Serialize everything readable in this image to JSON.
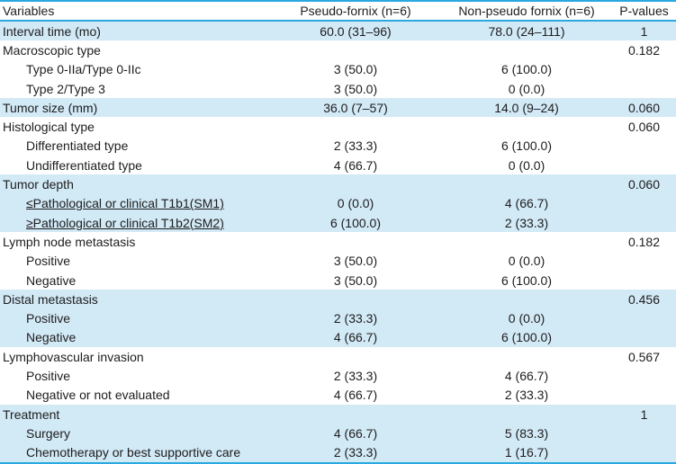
{
  "colors": {
    "accent_blue": "#2aa9e0",
    "shaded_row_blue": "#d2e9f6",
    "text": "#1d1d1d",
    "background": "#ffffff"
  },
  "table": {
    "columns": [
      "Variables",
      "Pseudo-fornix (n=6)",
      "Non-pseudo fornix (n=6)",
      "P-values"
    ],
    "rows": [
      {
        "shaded": true,
        "indent": false,
        "underline": false,
        "cells": [
          "Interval time (mo)",
          "60.0 (31–96)",
          "78.0 (24–111)",
          "1"
        ]
      },
      {
        "shaded": false,
        "indent": false,
        "underline": false,
        "cells": [
          "Macroscopic type",
          "",
          "",
          "0.182"
        ]
      },
      {
        "shaded": false,
        "indent": true,
        "underline": false,
        "cells": [
          "Type 0-IIa/Type 0-IIc",
          "3 (50.0)",
          "6 (100.0)",
          ""
        ]
      },
      {
        "shaded": false,
        "indent": true,
        "underline": false,
        "cells": [
          "Type 2/Type 3",
          "3 (50.0)",
          "0 (0.0)",
          ""
        ]
      },
      {
        "shaded": true,
        "indent": false,
        "underline": false,
        "cells": [
          "Tumor size (mm)",
          "36.0 (7–57)",
          "14.0 (9–24)",
          "0.060"
        ]
      },
      {
        "shaded": false,
        "indent": false,
        "underline": false,
        "cells": [
          "Histological type",
          "",
          "",
          "0.060"
        ]
      },
      {
        "shaded": false,
        "indent": true,
        "underline": false,
        "cells": [
          "Differentiated type",
          "2 (33.3)",
          "6 (100.0)",
          ""
        ]
      },
      {
        "shaded": false,
        "indent": true,
        "underline": false,
        "cells": [
          "Undifferentiated type",
          "4 (66.7)",
          "0 (0.0)",
          ""
        ]
      },
      {
        "shaded": true,
        "indent": false,
        "underline": false,
        "cells": [
          "Tumor depth",
          "",
          "",
          "0.060"
        ]
      },
      {
        "shaded": true,
        "indent": true,
        "underline": true,
        "cells": [
          "≤Pathological or clinical T1b1(SM1)",
          "0 (0.0)",
          "4 (66.7)",
          ""
        ]
      },
      {
        "shaded": true,
        "indent": true,
        "underline": true,
        "cells": [
          "≥Pathological or clinical T1b2(SM2)",
          "6 (100.0)",
          "2 (33.3)",
          ""
        ]
      },
      {
        "shaded": false,
        "indent": false,
        "underline": false,
        "cells": [
          "Lymph node metastasis",
          "",
          "",
          "0.182"
        ]
      },
      {
        "shaded": false,
        "indent": true,
        "underline": false,
        "cells": [
          "Positive",
          "3 (50.0)",
          "0 (0.0)",
          ""
        ]
      },
      {
        "shaded": false,
        "indent": true,
        "underline": false,
        "cells": [
          "Negative",
          "3 (50.0)",
          "6 (100.0)",
          ""
        ]
      },
      {
        "shaded": true,
        "indent": false,
        "underline": false,
        "cells": [
          "Distal metastasis",
          "",
          "",
          "0.456"
        ]
      },
      {
        "shaded": true,
        "indent": true,
        "underline": false,
        "cells": [
          "Positive",
          "2 (33.3)",
          "0 (0.0)",
          ""
        ]
      },
      {
        "shaded": true,
        "indent": true,
        "underline": false,
        "cells": [
          "Negative",
          "4 (66.7)",
          "6 (100.0)",
          ""
        ]
      },
      {
        "shaded": false,
        "indent": false,
        "underline": false,
        "cells": [
          "Lymphovascular invasion",
          "",
          "",
          "0.567"
        ]
      },
      {
        "shaded": false,
        "indent": true,
        "underline": false,
        "cells": [
          "Positive",
          "2 (33.3)",
          "4 (66.7)",
          ""
        ]
      },
      {
        "shaded": false,
        "indent": true,
        "underline": false,
        "cells": [
          "Negative or not evaluated",
          "4 (66.7)",
          "2 (33.3)",
          ""
        ]
      },
      {
        "shaded": true,
        "indent": false,
        "underline": false,
        "cells": [
          "Treatment",
          "",
          "",
          "1"
        ]
      },
      {
        "shaded": true,
        "indent": true,
        "underline": false,
        "cells": [
          "Surgery",
          "4 (66.7)",
          "5 (83.3)",
          ""
        ]
      },
      {
        "shaded": true,
        "indent": true,
        "underline": false,
        "cells": [
          "Chemotherapy or best supportive care",
          "2 (33.3)",
          "1 (16.7)",
          ""
        ]
      }
    ]
  }
}
